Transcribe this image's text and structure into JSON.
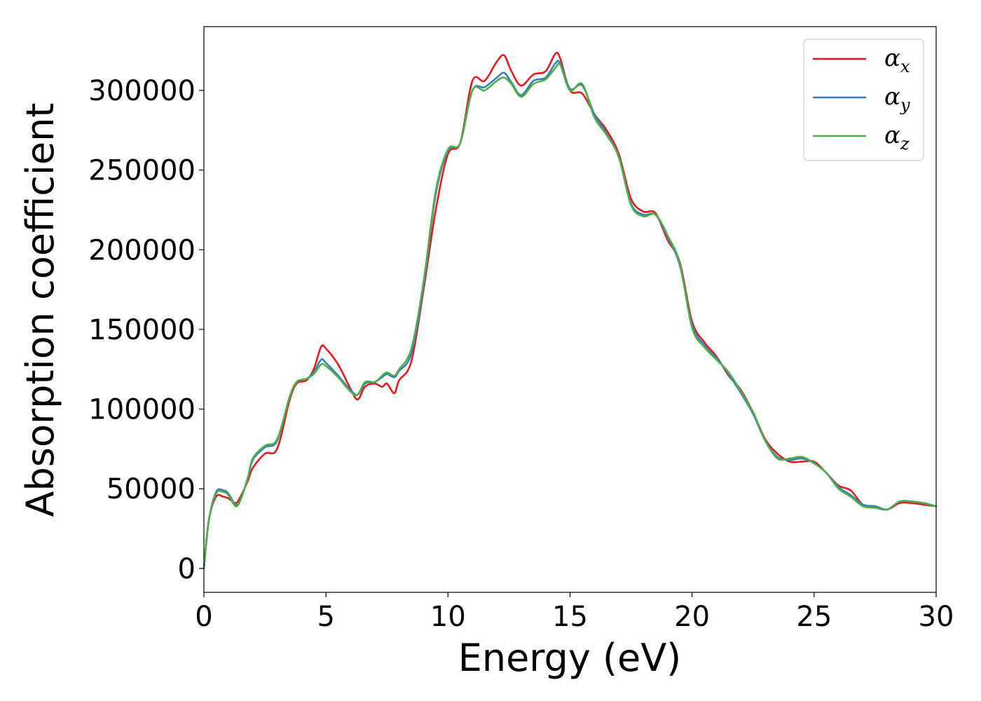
{
  "chart_data": {
    "type": "line",
    "title": "",
    "xlabel": "Energy (eV)",
    "ylabel": "Absorption coefficient",
    "xlim": [
      0,
      30
    ],
    "ylim": [
      -15000,
      340000
    ],
    "xticks": [
      0,
      5,
      10,
      15,
      20,
      25,
      30
    ],
    "xtick_labels": [
      "0",
      "5",
      "10",
      "15",
      "20",
      "25",
      "30"
    ],
    "yticks": [
      0,
      50000,
      100000,
      150000,
      200000,
      250000,
      300000
    ],
    "ytick_labels": [
      "0",
      "50000",
      "100000",
      "150000",
      "200000",
      "250000",
      "300000"
    ],
    "grid": false,
    "legend_position": "top-right",
    "x": [
      0,
      0.2,
      0.5,
      0.8,
      1.0,
      1.3,
      1.5,
      1.8,
      2.0,
      2.5,
      3.0,
      3.5,
      3.8,
      4.2,
      4.5,
      4.8,
      5.0,
      5.5,
      6.0,
      6.3,
      6.6,
      7.0,
      7.3,
      7.5,
      7.8,
      8.0,
      8.5,
      9.0,
      9.5,
      10.0,
      10.5,
      11.0,
      11.5,
      12.0,
      12.3,
      12.6,
      13.0,
      13.5,
      14.0,
      14.4,
      14.6,
      15.0,
      15.5,
      16.0,
      16.5,
      17.0,
      17.5,
      18.0,
      18.5,
      19.0,
      19.5,
      20.0,
      20.5,
      21.0,
      21.5,
      22.0,
      22.5,
      23.0,
      23.5,
      24.0,
      24.5,
      25.0,
      25.5,
      26.0,
      26.5,
      27.0,
      27.5,
      28.0,
      28.5,
      29.0,
      29.5,
      30.0
    ],
    "series": [
      {
        "name": "α_x",
        "label_main": "α",
        "label_sub": "x",
        "color": "#e41a1c",
        "values": [
          0,
          30000,
          45000,
          45000,
          44000,
          41000,
          45000,
          55000,
          63000,
          72000,
          75000,
          105000,
          116000,
          118000,
          125000,
          139000,
          138000,
          128000,
          113000,
          106000,
          114000,
          116000,
          114000,
          116000,
          110000,
          118000,
          130000,
          175000,
          225000,
          260000,
          267000,
          306000,
          306000,
          318000,
          322000,
          312000,
          303000,
          310000,
          312000,
          323000,
          320000,
          300000,
          298000,
          285000,
          275000,
          260000,
          232000,
          224000,
          223000,
          206000,
          192000,
          155000,
          142000,
          133000,
          121000,
          112000,
          98000,
          81000,
          72000,
          67000,
          67000,
          67000,
          60000,
          52000,
          49000,
          40000,
          39000,
          37000,
          41000,
          41000,
          40000,
          39000
        ]
      },
      {
        "name": "α_y",
        "label_main": "α",
        "label_sub": "y",
        "color": "#377eb8",
        "values": [
          0,
          30000,
          48000,
          49000,
          47000,
          40000,
          43000,
          57000,
          68000,
          76000,
          80000,
          107000,
          117000,
          119000,
          123000,
          131000,
          129000,
          121000,
          112000,
          109000,
          116000,
          117000,
          120000,
          122000,
          120000,
          124000,
          135000,
          178000,
          235000,
          262000,
          267000,
          300000,
          302000,
          308000,
          311000,
          305000,
          297000,
          306000,
          308000,
          317000,
          317000,
          301000,
          303000,
          285000,
          273000,
          258000,
          229000,
          222000,
          222000,
          208000,
          190000,
          153000,
          140000,
          132000,
          122000,
          110000,
          97000,
          80000,
          70000,
          68000,
          69000,
          66000,
          60000,
          51000,
          46000,
          40000,
          39000,
          37000,
          42000,
          42000,
          41000,
          39000
        ]
      },
      {
        "name": "α_z",
        "label_main": "α",
        "label_sub": "z",
        "color": "#4daf4a",
        "values": [
          0,
          30000,
          47000,
          48000,
          46000,
          39000,
          43000,
          57000,
          69000,
          77000,
          81000,
          107000,
          117000,
          119000,
          122000,
          128000,
          127000,
          120000,
          111000,
          109000,
          117000,
          117000,
          121000,
          123000,
          121000,
          125000,
          138000,
          180000,
          237000,
          263000,
          267000,
          300000,
          300000,
          306000,
          308000,
          304000,
          296000,
          304000,
          307000,
          314000,
          316000,
          300000,
          304000,
          283000,
          272000,
          258000,
          228000,
          221000,
          222000,
          209000,
          191000,
          151000,
          139000,
          131000,
          123000,
          111000,
          98000,
          80000,
          69000,
          69000,
          70000,
          66000,
          60000,
          50000,
          45000,
          39000,
          38000,
          37000,
          42000,
          42000,
          41000,
          39000
        ]
      }
    ]
  }
}
